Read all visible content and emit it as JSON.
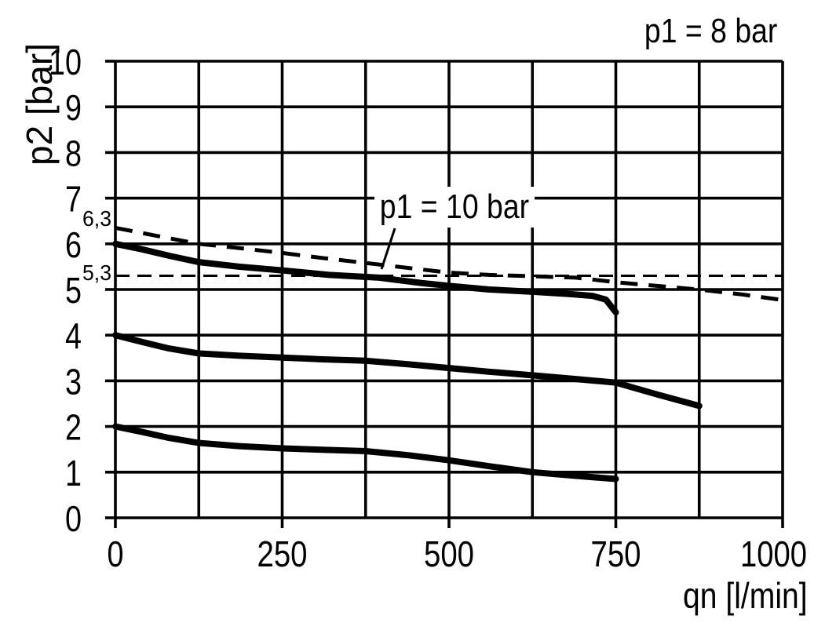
{
  "figure": {
    "background_color": "#ffffff",
    "ink_color": "#000000"
  },
  "chart_data": {
    "type": "line",
    "xlabel": "qn [l/min]",
    "ylabel": "p2 [bar]",
    "xlim": [
      0,
      1000
    ],
    "ylim": [
      0,
      10
    ],
    "grid": true,
    "x_grid_step": 125,
    "y_grid_step": 1,
    "x_major_ticks": [
      0,
      250,
      500,
      750,
      1000
    ],
    "x_tick_labels": [
      "0",
      "250",
      "500",
      "750",
      "1000"
    ],
    "y_ticks": [
      10,
      9,
      8,
      7,
      6,
      5,
      4,
      3,
      2,
      1,
      0
    ],
    "y_tick_labels": [
      "10",
      "9",
      "8",
      "7",
      "6",
      "5",
      "4",
      "3",
      "2",
      "1",
      "0"
    ],
    "extra_y_labels": [
      {
        "value": 6.3,
        "label": "6,3"
      },
      {
        "value": 5.3,
        "label": "5,3"
      }
    ],
    "reference_lines": [
      {
        "y": 5.3,
        "style": "dashed-thin"
      }
    ],
    "annotations": {
      "p1_8bar": {
        "text": "p1 = 8 bar",
        "position": "top-right"
      },
      "p1_10bar": {
        "text": "p1 = 10 bar",
        "points_to": "p1_10bar_curve"
      }
    },
    "series": [
      {
        "id": "p1_10bar_curve",
        "label": "p1 = 10 bar",
        "style": "dashed",
        "points": [
          [
            0,
            6.35
          ],
          [
            60,
            6.18
          ],
          [
            125,
            6.0
          ],
          [
            190,
            5.9
          ],
          [
            250,
            5.8
          ],
          [
            310,
            5.69
          ],
          [
            375,
            5.58
          ],
          [
            440,
            5.47
          ],
          [
            500,
            5.37
          ],
          [
            560,
            5.32
          ],
          [
            625,
            5.29
          ],
          [
            690,
            5.26
          ],
          [
            750,
            5.16
          ],
          [
            810,
            5.08
          ],
          [
            875,
            5.0
          ],
          [
            940,
            4.89
          ],
          [
            1000,
            4.77
          ]
        ]
      },
      {
        "id": "p1_8bar_set6",
        "style": "solid",
        "points": [
          [
            0,
            6.0
          ],
          [
            40,
            5.88
          ],
          [
            80,
            5.74
          ],
          [
            125,
            5.6
          ],
          [
            185,
            5.5
          ],
          [
            250,
            5.42
          ],
          [
            320,
            5.32
          ],
          [
            395,
            5.26
          ],
          [
            460,
            5.14
          ],
          [
            500,
            5.08
          ],
          [
            560,
            5.0
          ],
          [
            625,
            4.95
          ],
          [
            680,
            4.9
          ],
          [
            715,
            4.86
          ],
          [
            735,
            4.78
          ],
          [
            750,
            4.5
          ]
        ]
      },
      {
        "id": "p1_8bar_set4",
        "style": "solid",
        "points": [
          [
            0,
            4.0
          ],
          [
            40,
            3.85
          ],
          [
            80,
            3.71
          ],
          [
            125,
            3.6
          ],
          [
            185,
            3.55
          ],
          [
            250,
            3.51
          ],
          [
            310,
            3.47
          ],
          [
            375,
            3.44
          ],
          [
            440,
            3.36
          ],
          [
            500,
            3.28
          ],
          [
            560,
            3.2
          ],
          [
            625,
            3.12
          ],
          [
            690,
            3.04
          ],
          [
            750,
            2.96
          ],
          [
            810,
            2.71
          ],
          [
            875,
            2.45
          ]
        ]
      },
      {
        "id": "p1_8bar_set2",
        "style": "solid",
        "points": [
          [
            0,
            2.0
          ],
          [
            40,
            1.88
          ],
          [
            80,
            1.75
          ],
          [
            125,
            1.64
          ],
          [
            185,
            1.57
          ],
          [
            250,
            1.52
          ],
          [
            310,
            1.49
          ],
          [
            375,
            1.46
          ],
          [
            440,
            1.37
          ],
          [
            500,
            1.26
          ],
          [
            560,
            1.13
          ],
          [
            625,
            1.0
          ],
          [
            690,
            0.92
          ],
          [
            750,
            0.85
          ]
        ]
      }
    ]
  }
}
